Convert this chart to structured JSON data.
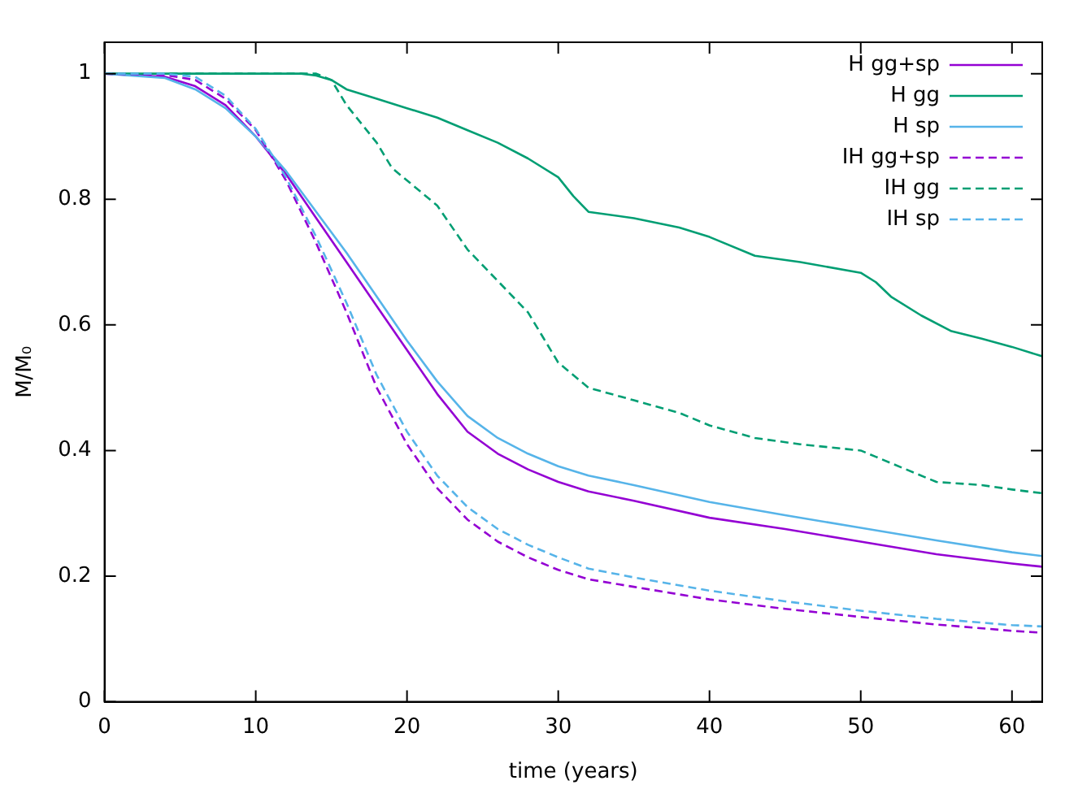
{
  "chart_data": {
    "type": "line",
    "xlabel": "time (years)",
    "ylabel": "M/M₀",
    "xlim": [
      0,
      62
    ],
    "ylim": [
      0,
      1.05
    ],
    "xticks": [
      0,
      10,
      20,
      30,
      40,
      50,
      60
    ],
    "yticks": [
      0,
      0.2,
      0.4,
      0.6,
      0.8,
      1
    ],
    "legend": "top right",
    "grid": false,
    "marker": "none",
    "series": [
      {
        "name": "H gg+sp",
        "color": "#9400d3",
        "line_style": "solid",
        "x": [
          0,
          4,
          6,
          8,
          10,
          12,
          14,
          16,
          18,
          20,
          22,
          24,
          26,
          28,
          30,
          32,
          35,
          40,
          45,
          50,
          55,
          60,
          62
        ],
        "values": [
          1,
          0.995,
          0.98,
          0.95,
          0.9,
          0.84,
          0.77,
          0.7,
          0.63,
          0.56,
          0.49,
          0.43,
          0.395,
          0.37,
          0.35,
          0.335,
          0.32,
          0.293,
          0.275,
          0.255,
          0.235,
          0.22,
          0.215
        ]
      },
      {
        "name": "H gg",
        "color": "#009e73",
        "line_style": "solid",
        "x": [
          0,
          13,
          14,
          15,
          16,
          18,
          20,
          22,
          24,
          26,
          28,
          30,
          31,
          32,
          35,
          38,
          40,
          43,
          46,
          50,
          51,
          52,
          54,
          56,
          58,
          60,
          62
        ],
        "values": [
          1,
          1,
          0.997,
          0.99,
          0.975,
          0.96,
          0.945,
          0.93,
          0.91,
          0.89,
          0.865,
          0.835,
          0.805,
          0.78,
          0.77,
          0.755,
          0.74,
          0.71,
          0.7,
          0.683,
          0.668,
          0.645,
          0.615,
          0.59,
          0.578,
          0.565,
          0.55
        ]
      },
      {
        "name": "H sp",
        "color": "#56b4e9",
        "line_style": "solid",
        "x": [
          0,
          4,
          6,
          8,
          10,
          12,
          14,
          16,
          18,
          20,
          22,
          24,
          26,
          28,
          30,
          32,
          35,
          40,
          45,
          50,
          55,
          60,
          62
        ],
        "values": [
          1,
          0.993,
          0.975,
          0.945,
          0.9,
          0.845,
          0.78,
          0.715,
          0.645,
          0.575,
          0.51,
          0.455,
          0.42,
          0.395,
          0.375,
          0.36,
          0.345,
          0.318,
          0.297,
          0.277,
          0.257,
          0.238,
          0.232
        ]
      },
      {
        "name": "IH gg+sp",
        "color": "#9400d3",
        "line_style": "dashed",
        "x": [
          0,
          4,
          6,
          8,
          10,
          12,
          14,
          16,
          18,
          20,
          22,
          24,
          26,
          28,
          30,
          32,
          35,
          40,
          45,
          50,
          55,
          60,
          62
        ],
        "values": [
          1,
          0.998,
          0.99,
          0.96,
          0.91,
          0.83,
          0.73,
          0.62,
          0.5,
          0.41,
          0.34,
          0.29,
          0.255,
          0.23,
          0.21,
          0.195,
          0.183,
          0.163,
          0.148,
          0.135,
          0.123,
          0.113,
          0.11
        ]
      },
      {
        "name": "IH gg",
        "color": "#009e73",
        "line_style": "dashed",
        "x": [
          0,
          14,
          15,
          16,
          17,
          18,
          19,
          20,
          22,
          24,
          26,
          28,
          29,
          30,
          32,
          35,
          38,
          40,
          43,
          46,
          50,
          51,
          53,
          55,
          58,
          60,
          62
        ],
        "values": [
          1,
          1,
          0.99,
          0.95,
          0.92,
          0.89,
          0.85,
          0.83,
          0.79,
          0.72,
          0.67,
          0.62,
          0.58,
          0.54,
          0.5,
          0.48,
          0.46,
          0.44,
          0.42,
          0.41,
          0.4,
          0.39,
          0.37,
          0.35,
          0.345,
          0.338,
          0.332
        ]
      },
      {
        "name": "IH sp",
        "color": "#56b4e9",
        "line_style": "dashed",
        "x": [
          0,
          4,
          6,
          8,
          10,
          12,
          14,
          16,
          18,
          20,
          22,
          24,
          26,
          28,
          30,
          32,
          35,
          40,
          45,
          50,
          55,
          60,
          62
        ],
        "values": [
          1,
          1,
          0.995,
          0.965,
          0.912,
          0.835,
          0.74,
          0.635,
          0.52,
          0.43,
          0.36,
          0.31,
          0.275,
          0.25,
          0.23,
          0.212,
          0.198,
          0.177,
          0.16,
          0.145,
          0.132,
          0.122,
          0.12
        ]
      }
    ]
  }
}
